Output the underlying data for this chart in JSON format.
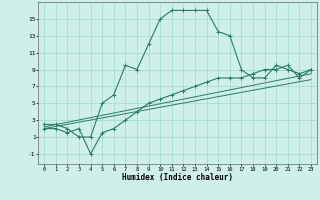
{
  "xlabel": "Humidex (Indice chaleur)",
  "bg_color": "#cff0ea",
  "grid_color": "#9ed8d0",
  "line_color": "#2a7a68",
  "x_ticks": [
    0,
    1,
    2,
    3,
    4,
    5,
    6,
    7,
    8,
    9,
    10,
    11,
    12,
    13,
    14,
    15,
    16,
    17,
    18,
    19,
    20,
    21,
    22,
    23
  ],
  "y_ticks": [
    -1,
    1,
    3,
    5,
    7,
    9,
    11,
    13,
    15
  ],
  "ylim": [
    -2.2,
    17.0
  ],
  "xlim": [
    -0.5,
    23.5
  ],
  "series1_x": [
    0,
    1,
    2,
    3,
    4,
    5,
    6,
    7,
    8,
    9,
    10,
    11,
    12,
    13,
    14,
    15,
    16,
    17,
    18,
    19,
    20,
    21,
    22,
    23
  ],
  "series1_y": [
    2.5,
    2.5,
    2.0,
    1.0,
    1.0,
    5.0,
    6.0,
    9.5,
    9.0,
    12.0,
    15.0,
    16.0,
    16.0,
    16.0,
    16.0,
    13.5,
    13.0,
    9.0,
    8.0,
    8.0,
    9.5,
    9.0,
    8.5,
    9.0
  ],
  "series2_x": [
    0,
    1,
    2,
    3,
    4,
    5,
    6,
    7,
    8,
    9,
    10,
    11,
    12,
    13,
    14,
    15,
    16,
    17,
    18,
    19,
    20,
    21,
    22,
    23
  ],
  "series2_y": [
    2.0,
    2.0,
    1.5,
    2.0,
    -1.0,
    1.5,
    2.0,
    3.0,
    4.0,
    5.0,
    5.5,
    6.0,
    6.5,
    7.0,
    7.5,
    8.0,
    8.0,
    8.0,
    8.5,
    9.0,
    9.0,
    9.5,
    8.0,
    9.0
  ],
  "series3_x": [
    0,
    23
  ],
  "series3_y": [
    2.0,
    7.8
  ],
  "series4_x": [
    0,
    23
  ],
  "series4_y": [
    2.2,
    8.5
  ]
}
